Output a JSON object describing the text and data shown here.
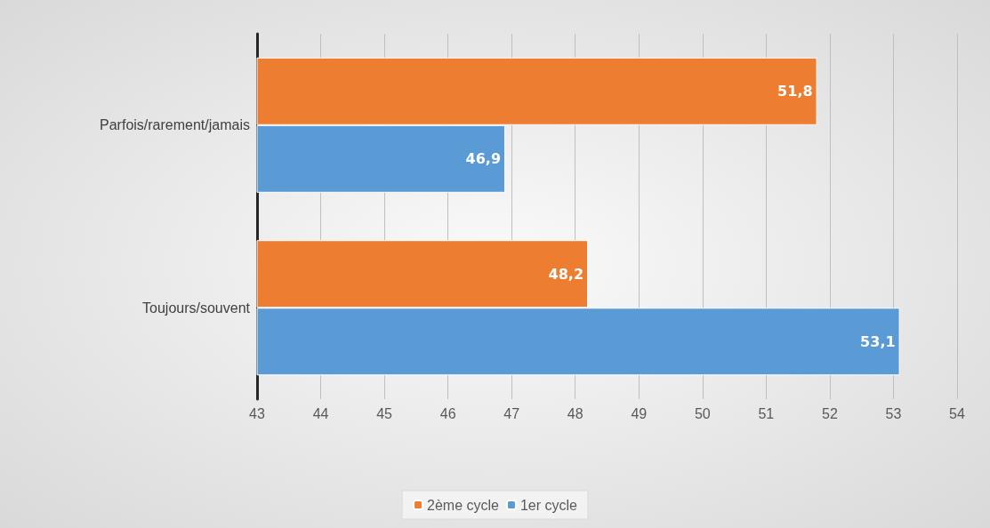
{
  "chart_data": {
    "type": "bar",
    "orientation": "horizontal",
    "categories": [
      "Parfois/rarement/jamais",
      "Toujours/souvent"
    ],
    "series": [
      {
        "name": "2ème cycle",
        "color": "#ed7d31",
        "values": [
          51.8,
          48.2
        ],
        "value_labels": [
          "51,8",
          "48,2"
        ]
      },
      {
        "name": "1er cycle",
        "color": "#5b9bd5",
        "values": [
          46.9,
          53.1
        ],
        "value_labels": [
          "46,9",
          "53,1"
        ]
      }
    ],
    "xlim": [
      43,
      54
    ],
    "xticks": [
      43,
      44,
      45,
      46,
      47,
      48,
      49,
      50,
      51,
      52,
      53,
      54
    ],
    "grid": "x",
    "legend": "bottom"
  }
}
